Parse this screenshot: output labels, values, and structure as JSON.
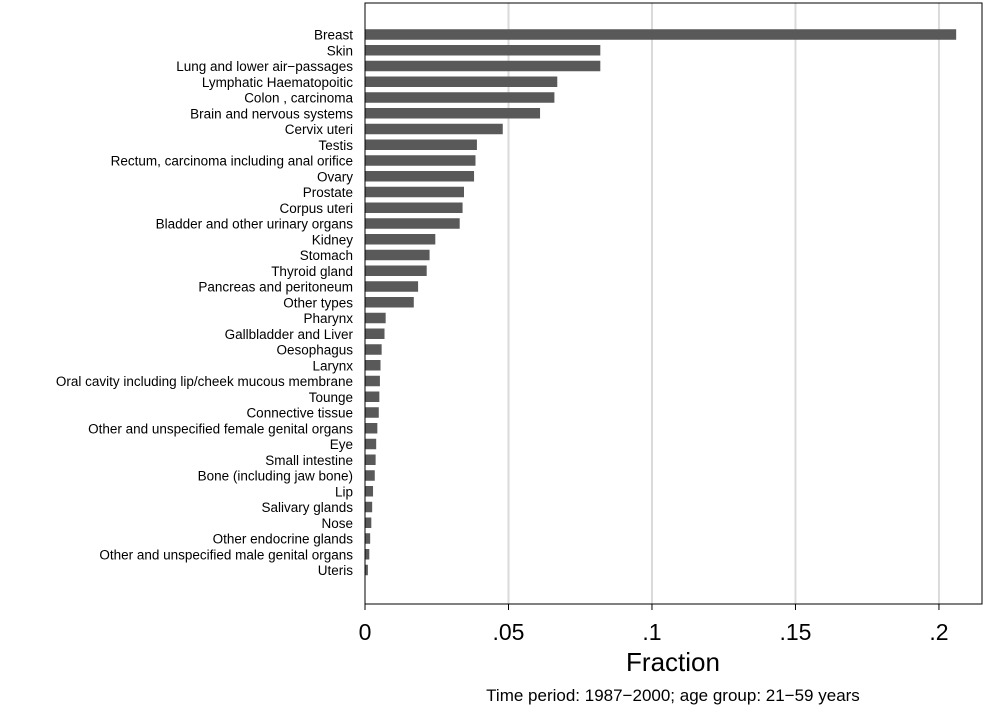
{
  "chart_data": {
    "type": "bar",
    "orientation": "horizontal",
    "categories": [
      "Breast",
      "Skin",
      "Lung and lower air−passages",
      "Lymphatic Haematopoitic",
      "Colon , carcinoma",
      "Brain and nervous systems",
      "Cervix uteri",
      "Testis",
      "Rectum, carcinoma including anal orifice",
      "Ovary",
      "Prostate",
      "Corpus uteri",
      "Bladder and other urinary organs",
      "Kidney",
      "Stomach",
      "Thyroid gland",
      "Pancreas and peritoneum",
      "Other types",
      "Pharynx",
      "Gallbladder and Liver",
      "Oesophagus",
      "Larynx",
      "Oral cavity including lip/cheek mucous membrane",
      "Tounge",
      "Connective tissue",
      "Other and unspecified female genital organs",
      "Eye",
      "Small intestine",
      "Bone (including jaw bone)",
      "Lip",
      "Salivary glands",
      "Nose",
      "Other endocrine glands",
      "Other and unspecified male genital organs",
      "Uteris"
    ],
    "values": [
      0.206,
      0.082,
      0.082,
      0.067,
      0.066,
      0.061,
      0.048,
      0.039,
      0.0385,
      0.038,
      0.0345,
      0.034,
      0.033,
      0.0245,
      0.0225,
      0.0215,
      0.0185,
      0.017,
      0.0072,
      0.0068,
      0.0058,
      0.0054,
      0.0052,
      0.005,
      0.0048,
      0.0043,
      0.0039,
      0.0037,
      0.0034,
      0.0028,
      0.0025,
      0.0022,
      0.0018,
      0.0015,
      0.001
    ],
    "xlabel": "Fraction",
    "ylabel": "",
    "xlim": [
      0,
      0.215
    ],
    "xticks": [
      0,
      0.05,
      0.1,
      0.15,
      0.2
    ],
    "xtick_labels": [
      "0",
      ".05",
      ".1",
      ".15",
      ".2"
    ],
    "grid": true,
    "bar_color": "#595959",
    "grid_color": "#dadada",
    "note": "Time period: 1987−2000; age group: 21−59 years"
  }
}
